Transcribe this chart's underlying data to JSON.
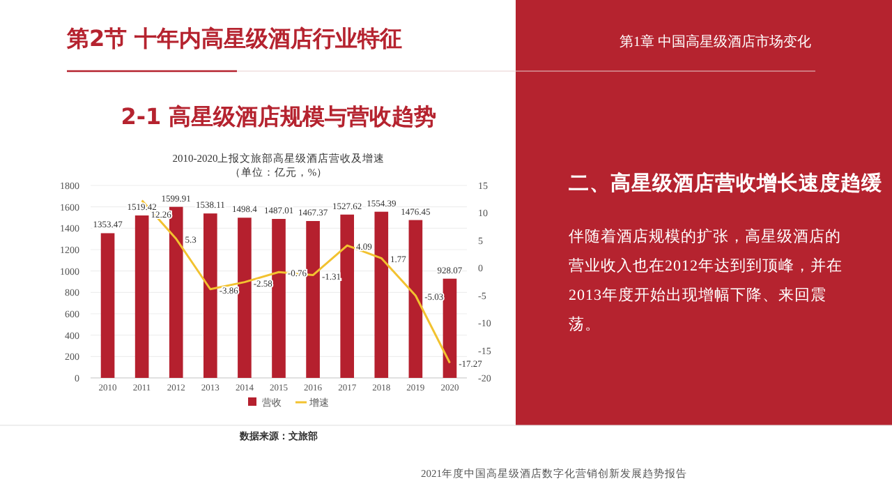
{
  "chart_data": {
    "type": "bar",
    "title": "2010-2020上报文旅部高星级酒店营收及增速",
    "subtitle": "（单位：亿元，%）",
    "categories": [
      "2010",
      "2011",
      "2012",
      "2013",
      "2014",
      "2015",
      "2016",
      "2017",
      "2018",
      "2019",
      "2020"
    ],
    "series": [
      {
        "name": "营收",
        "color": "#b5202e",
        "values": [
          1353.47,
          1519.42,
          1599.91,
          1538.11,
          1498.4,
          1487.01,
          1467.37,
          1527.62,
          1554.39,
          1476.45,
          928.07
        ]
      },
      {
        "name": "增速",
        "type": "line",
        "axis": "y2",
        "color": "#f2c230",
        "values": [
          null,
          12.26,
          5.3,
          -3.86,
          -2.58,
          -0.76,
          -1.31,
          4.09,
          1.77,
          -5.03,
          -17.27
        ]
      }
    ],
    "ylim": [
      0,
      1800
    ],
    "yticks": [
      0,
      200,
      400,
      600,
      800,
      1000,
      1200,
      1400,
      1600,
      1800
    ],
    "y2lim": [
      -20,
      15
    ],
    "y2ticks": [
      -20,
      -15,
      -10,
      -5,
      0,
      5,
      10,
      15
    ],
    "grid": "y",
    "legend": "bottom",
    "data_labels": true,
    "marker": "none",
    "annotations": [
      "数据来源：文旅部",
      "第2节  十年内高星级酒店行业特征",
      "2-1  高星级酒店规模与营收趋势",
      "第1章   中国高星级酒店市场变化",
      "二、高星级酒店营收增长速度趋缓",
      "伴随着酒店规模的扩张，高星级酒店的营业收入也在2012年达到到顶峰，并在2013年度开始出现增幅下降、来回震荡。",
      "2021年度中国高星级酒店数字化营销创新发展趋势报告"
    ]
  }
}
